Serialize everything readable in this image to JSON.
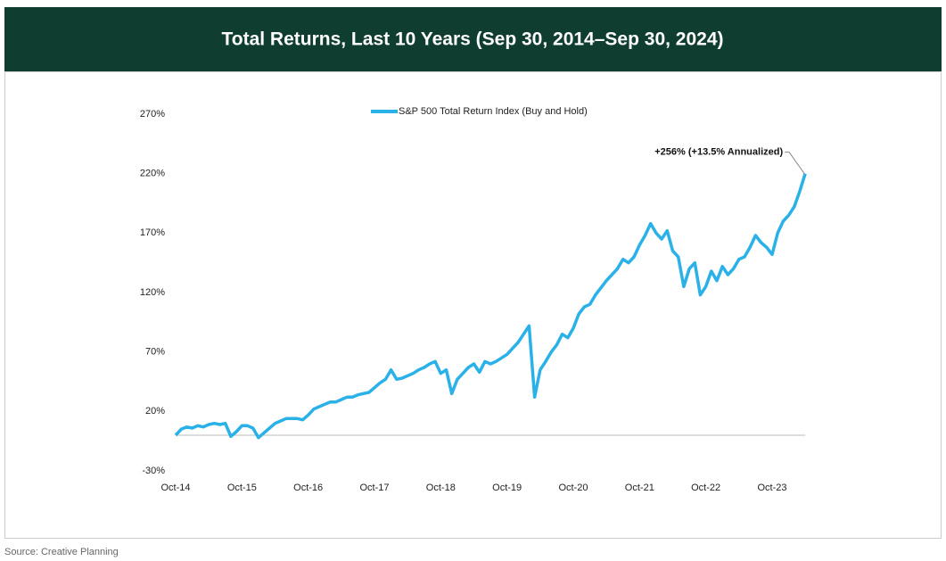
{
  "chart_data": {
    "type": "line",
    "title": "Total Returns, Last 10 Years (Sep 30, 2014–Sep 30, 2024)",
    "source": "Source: Creative Planning",
    "annotation": "+256% (+13.5% Annualized)",
    "legend": "top",
    "categories": [
      "Oct-14",
      null,
      null,
      null,
      null,
      null,
      null,
      null,
      null,
      null,
      null,
      null,
      "Oct-15",
      null,
      null,
      null,
      null,
      null,
      null,
      null,
      null,
      null,
      null,
      null,
      "Oct-16",
      null,
      null,
      null,
      null,
      null,
      null,
      null,
      null,
      null,
      null,
      null,
      "Oct-17",
      null,
      null,
      null,
      null,
      null,
      null,
      null,
      null,
      null,
      null,
      null,
      "Oct-18",
      null,
      null,
      null,
      null,
      null,
      null,
      null,
      null,
      null,
      null,
      null,
      "Oct-19",
      null,
      null,
      null,
      null,
      null,
      null,
      null,
      null,
      null,
      null,
      null,
      "Oct-20",
      null,
      null,
      null,
      null,
      null,
      null,
      null,
      null,
      null,
      null,
      null,
      "Oct-21",
      null,
      null,
      null,
      null,
      null,
      null,
      null,
      null,
      null,
      null,
      null,
      "Oct-22",
      null,
      null,
      null,
      null,
      null,
      null,
      null,
      null,
      null,
      null,
      null,
      "Oct-23",
      null,
      null,
      null,
      null,
      null,
      null
    ],
    "series": [
      {
        "name": "S&P 500 Total Return Index (Buy and Hold)",
        "color": "#29b1e8",
        "values": [
          0,
          5,
          7,
          6,
          8,
          7,
          9,
          10,
          9,
          10,
          -1,
          3,
          8,
          8,
          6,
          -2,
          2,
          6,
          10,
          12,
          14,
          14,
          14,
          13,
          17,
          22,
          24,
          26,
          28,
          28,
          30,
          32,
          32,
          34,
          35,
          36,
          40,
          44,
          47,
          55,
          47,
          48,
          50,
          52,
          55,
          57,
          60,
          62,
          52,
          55,
          35,
          47,
          52,
          57,
          60,
          53,
          62,
          60,
          62,
          65,
          68,
          73,
          78,
          85,
          92,
          32,
          55,
          62,
          70,
          76,
          85,
          82,
          90,
          102,
          108,
          110,
          118,
          124,
          130,
          135,
          140,
          148,
          145,
          150,
          160,
          168,
          178,
          170,
          165,
          172,
          155,
          150,
          125,
          140,
          145,
          118,
          125,
          138,
          130,
          142,
          135,
          140,
          148,
          150,
          158,
          168,
          162,
          158,
          152,
          170,
          180,
          185,
          192,
          205,
          220
        ]
      }
    ],
    "ylim": [
      -30,
      270
    ],
    "yticks": [
      {
        "value": -30,
        "label": "-30%"
      },
      {
        "value": 20,
        "label": "20%"
      },
      {
        "value": 70,
        "label": "70%"
      },
      {
        "value": 120,
        "label": "120%"
      },
      {
        "value": 170,
        "label": "170%"
      },
      {
        "value": 220,
        "label": "220%"
      },
      {
        "value": 270,
        "label": "270%"
      }
    ],
    "grid": false
  }
}
